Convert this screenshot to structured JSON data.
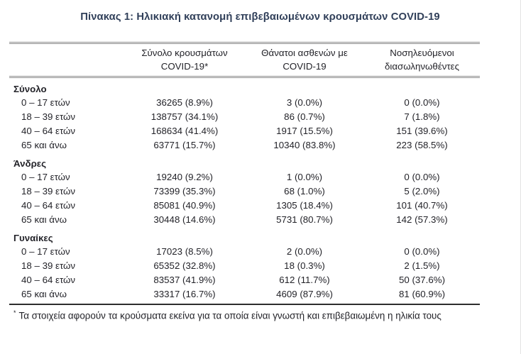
{
  "page": {
    "title": "Πίνακας 1: Ηλικιακή κατανομή επιβεβαιωμένων κρουσμάτων COVID-19",
    "title_color": "#31405a",
    "text_color": "#232329",
    "background": "#ffffff"
  },
  "table": {
    "columns": [
      {
        "line1": "Σύνολο κρουσμάτων",
        "line2": "COVID-19*"
      },
      {
        "line1": "Θάνατοι ασθενών με",
        "line2": "COVID-19"
      },
      {
        "line1": "Νοσηλευόμενοι",
        "line2": "διασωληνωθέντες"
      }
    ],
    "sections": [
      {
        "label": "Σύνολο",
        "rows": [
          {
            "age": "0 – 17 ετών",
            "cases": "36265 (8.9%)",
            "deaths": "3 (0.0%)",
            "intubated": "0 (0.0%)"
          },
          {
            "age": "18 – 39 ετών",
            "cases": "138757 (34.1%)",
            "deaths": "86 (0.7%)",
            "intubated": "7 (1.8%)"
          },
          {
            "age": "40 – 64 ετών",
            "cases": "168634 (41.4%)",
            "deaths": "1917 (15.5%)",
            "intubated": "151 (39.6%)"
          },
          {
            "age": "65 και άνω",
            "cases": "63771 (15.7%)",
            "deaths": "10340 (83.8%)",
            "intubated": "223 (58.5%)"
          }
        ]
      },
      {
        "label": "Άνδρες",
        "rows": [
          {
            "age": "0 – 17 ετών",
            "cases": "19240 (9.2%)",
            "deaths": "1 (0.0%)",
            "intubated": "0 (0.0%)"
          },
          {
            "age": "18 – 39 ετών",
            "cases": "73399 (35.3%)",
            "deaths": "68 (1.0%)",
            "intubated": "5 (2.0%)"
          },
          {
            "age": "40 – 64 ετών",
            "cases": "85081 (40.9%)",
            "deaths": "1305 (18.4%)",
            "intubated": "101 (40.7%)"
          },
          {
            "age": "65 και άνω",
            "cases": "30448 (14.6%)",
            "deaths": "5731 (80.7%)",
            "intubated": "142 (57.3%)"
          }
        ]
      },
      {
        "label": "Γυναίκες",
        "rows": [
          {
            "age": "0 – 17 ετών",
            "cases": "17023 (8.5%)",
            "deaths": "2 (0.0%)",
            "intubated": "0 (0.0%)"
          },
          {
            "age": "18 – 39 ετών",
            "cases": "65352 (32.8%)",
            "deaths": "18 (0.3%)",
            "intubated": "2 (1.5%)"
          },
          {
            "age": "40 – 64 ετών",
            "cases": "83537 (41.9%)",
            "deaths": "612 (11.7%)",
            "intubated": "50 (37.6%)"
          },
          {
            "age": "65 και άνω",
            "cases": "33317 (16.7%)",
            "deaths": "4609 (87.9%)",
            "intubated": "81 (60.9%)"
          }
        ]
      }
    ]
  },
  "footnote": {
    "marker": "*",
    "text": "Τα στοιχεία αφορούν τα κρούσματα εκείνα για τα οποία είναι γνωστή και επιβεβαιωμένη η ηλικία τους"
  }
}
